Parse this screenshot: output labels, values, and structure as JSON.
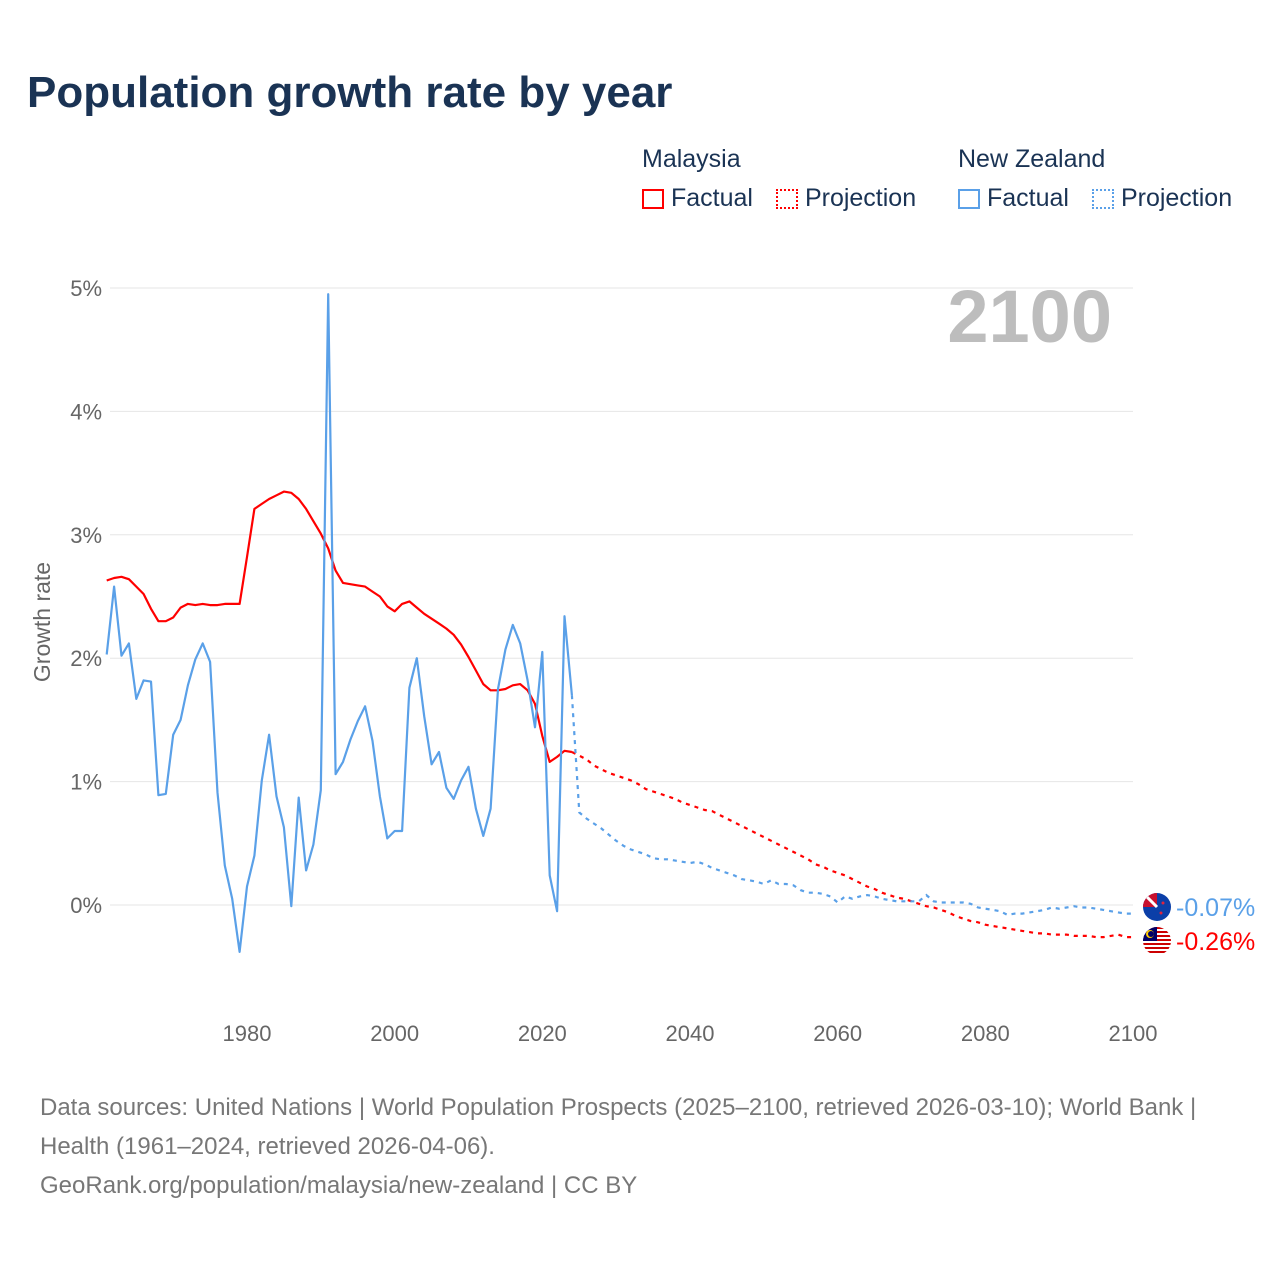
{
  "title": "Population growth rate by year",
  "legend": {
    "groups": [
      {
        "name": "Malaysia",
        "factual": "Factual",
        "projection": "Projection",
        "color": "#ff0000"
      },
      {
        "name": "New Zealand",
        "factual": "Factual",
        "projection": "Projection",
        "color": "#5aa0e8"
      }
    ]
  },
  "footer": {
    "sources": "Data sources: United Nations | World Population Prospects (2025–2100, retrieved 2026-03-10); World Bank | Health (1961–2024, retrieved 2026-04-06).",
    "link": "GeoRank.org/population/malaysia/new-zealand | CC BY"
  },
  "chart_data": {
    "type": "line",
    "title": "Population growth rate by year",
    "xlabel": "",
    "ylabel": "Growth rate",
    "year_label": "2100",
    "xlim": [
      1961,
      2100
    ],
    "ylim": [
      -0.8,
      5
    ],
    "x_ticks": [
      1980,
      2000,
      2020,
      2040,
      2060,
      2080,
      2100
    ],
    "x_tick_labels": [
      "1980",
      "2000",
      "2020",
      "2040",
      "2060",
      "2080",
      "2100"
    ],
    "y_ticks": [
      0,
      1,
      2,
      3,
      4,
      5
    ],
    "y_tick_labels": [
      "0%",
      "1%",
      "2%",
      "3%",
      "4%",
      "5%"
    ],
    "grid": true,
    "legend_position": "top-right",
    "series": [
      {
        "name": "Malaysia",
        "color": "#ff0000",
        "end_label": "-0.26%",
        "factual_start": 1961,
        "factual": [
          2.63,
          2.65,
          2.66,
          2.64,
          2.58,
          2.52,
          2.4,
          2.3,
          2.3,
          2.33,
          2.41,
          2.44,
          2.43,
          2.44,
          2.43,
          2.43,
          2.44,
          2.44,
          2.44,
          2.82,
          3.21,
          3.25,
          3.29,
          3.32,
          3.35,
          3.34,
          3.29,
          3.21,
          3.11,
          3.01,
          2.89,
          2.71,
          2.61,
          2.6,
          2.59,
          2.58,
          2.54,
          2.5,
          2.42,
          2.38,
          2.44,
          2.46,
          2.41,
          2.36,
          2.32,
          2.28,
          2.24,
          2.19,
          2.11,
          2.01,
          1.9,
          1.79,
          1.74,
          1.74,
          1.75,
          1.78,
          1.79,
          1.74,
          1.63,
          1.37,
          1.16,
          1.2,
          1.25,
          1.24
        ],
        "projection_start": 2025,
        "projection": [
          1.21,
          1.18,
          1.13,
          1.1,
          1.07,
          1.05,
          1.03,
          1.01,
          0.98,
          0.94,
          0.92,
          0.9,
          0.88,
          0.86,
          0.83,
          0.81,
          0.79,
          0.77,
          0.76,
          0.73,
          0.7,
          0.67,
          0.64,
          0.61,
          0.58,
          0.55,
          0.52,
          0.49,
          0.46,
          0.43,
          0.4,
          0.37,
          0.33,
          0.31,
          0.28,
          0.26,
          0.24,
          0.21,
          0.18,
          0.15,
          0.13,
          0.1,
          0.08,
          0.06,
          0.05,
          0.03,
          0.01,
          -0.01,
          -0.02,
          -0.04,
          -0.06,
          -0.09,
          -0.11,
          -0.13,
          -0.14,
          -0.16,
          -0.17,
          -0.18,
          -0.19,
          -0.2,
          -0.21,
          -0.22,
          -0.23,
          -0.23,
          -0.24,
          -0.24,
          -0.24,
          -0.25,
          -0.25,
          -0.25,
          -0.26,
          -0.26,
          -0.25,
          -0.24,
          -0.26,
          -0.26
        ]
      },
      {
        "name": "New Zealand",
        "color": "#5aa0e8",
        "end_label": "-0.07%",
        "factual_start": 1961,
        "factual": [
          2.03,
          2.58,
          2.02,
          2.12,
          1.67,
          1.82,
          1.81,
          0.89,
          0.9,
          1.38,
          1.5,
          1.78,
          1.99,
          2.12,
          1.97,
          0.91,
          0.32,
          0.05,
          -0.38,
          0.15,
          0.4,
          1.01,
          1.38,
          0.88,
          0.63,
          -0.01,
          0.87,
          0.28,
          0.49,
          0.93,
          4.95,
          1.06,
          1.16,
          1.34,
          1.49,
          1.61,
          1.33,
          0.88,
          0.54,
          0.6,
          0.6,
          1.76,
          2.0,
          1.53,
          1.14,
          1.24,
          0.95,
          0.86,
          1.01,
          1.12,
          0.78,
          0.56,
          0.78,
          1.75,
          2.07,
          2.27,
          2.12,
          1.82,
          1.44,
          2.05,
          0.24,
          -0.05,
          2.34,
          1.7
        ],
        "projection_start": 2025,
        "projection": [
          0.75,
          0.7,
          0.66,
          0.62,
          0.57,
          0.52,
          0.48,
          0.45,
          0.43,
          0.41,
          0.38,
          0.37,
          0.37,
          0.36,
          0.35,
          0.34,
          0.35,
          0.33,
          0.3,
          0.28,
          0.26,
          0.24,
          0.21,
          0.2,
          0.19,
          0.17,
          0.2,
          0.17,
          0.17,
          0.16,
          0.12,
          0.1,
          0.1,
          0.09,
          0.07,
          0.02,
          0.07,
          0.05,
          0.07,
          0.08,
          0.07,
          0.05,
          0.04,
          0.03,
          0.03,
          0.03,
          0.03,
          0.08,
          0.03,
          0.02,
          0.02,
          0.02,
          0.02,
          0.01,
          -0.02,
          -0.03,
          -0.04,
          -0.05,
          -0.08,
          -0.07,
          -0.07,
          -0.06,
          -0.05,
          -0.04,
          -0.02,
          -0.03,
          -0.02,
          -0.01,
          -0.02,
          -0.02,
          -0.03,
          -0.04,
          -0.05,
          -0.06,
          -0.07,
          -0.07
        ]
      }
    ]
  }
}
